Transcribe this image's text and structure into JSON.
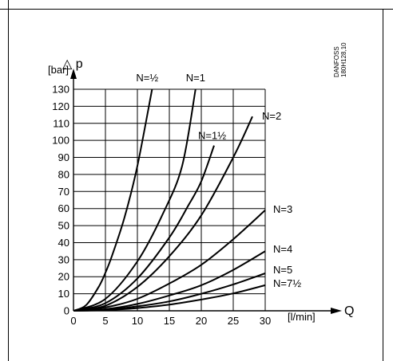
{
  "chart_data": {
    "type": "line",
    "title": "",
    "xlabel": "[l/min]",
    "ylabel": "[bar]",
    "x_symbol": "Q",
    "y_symbol": "△ p",
    "xlim": [
      0,
      30
    ],
    "ylim": [
      0,
      130
    ],
    "x_ticks": [
      "0",
      "5",
      "10",
      "15",
      "20",
      "25",
      "30"
    ],
    "y_ticks": [
      "0",
      "10",
      "20",
      "30",
      "40",
      "50",
      "60",
      "70",
      "80",
      "90",
      "100",
      "110",
      "120",
      "130"
    ],
    "grid": true,
    "code": [
      "DANFOSS",
      "180H128,10"
    ],
    "series": [
      {
        "name": "N=½",
        "x": [
          0,
          2,
          4,
          5,
          6,
          8,
          10,
          12.3
        ],
        "y": [
          0,
          3.4,
          14.4,
          22.4,
          32,
          55,
          85,
          130
        ]
      },
      {
        "name": "N=1",
        "x": [
          0,
          5,
          10,
          14,
          17,
          19.1
        ],
        "y": [
          0,
          7,
          29,
          57,
          85,
          130
        ]
      },
      {
        "name": "N=1½",
        "x": [
          0,
          5,
          10,
          15,
          18,
          20,
          22
        ],
        "y": [
          0,
          4.5,
          19,
          43,
          62,
          76,
          97
        ]
      },
      {
        "name": "N=2",
        "x": [
          0,
          5,
          10,
          15,
          20,
          25,
          28
        ],
        "y": [
          0,
          3,
          14,
          32,
          56,
          90,
          114
        ]
      },
      {
        "name": "N=3",
        "x": [
          0,
          5,
          10,
          15,
          20,
          25,
          30
        ],
        "y": [
          0,
          2,
          7,
          16,
          27,
          42,
          59
        ]
      },
      {
        "name": "N=4",
        "x": [
          0,
          5,
          10,
          15,
          20,
          25,
          30
        ],
        "y": [
          0,
          1,
          4,
          9,
          15,
          24,
          35
        ]
      },
      {
        "name": "N=5",
        "x": [
          0,
          5,
          10,
          15,
          20,
          25,
          30
        ],
        "y": [
          0,
          0.6,
          2.6,
          5.5,
          10,
          15.5,
          22
        ]
      },
      {
        "name": "N=7½",
        "x": [
          0,
          5,
          10,
          15,
          20,
          25,
          30
        ],
        "y": [
          0,
          0.4,
          1.6,
          3.6,
          6.6,
          10.2,
          15
        ]
      }
    ]
  }
}
